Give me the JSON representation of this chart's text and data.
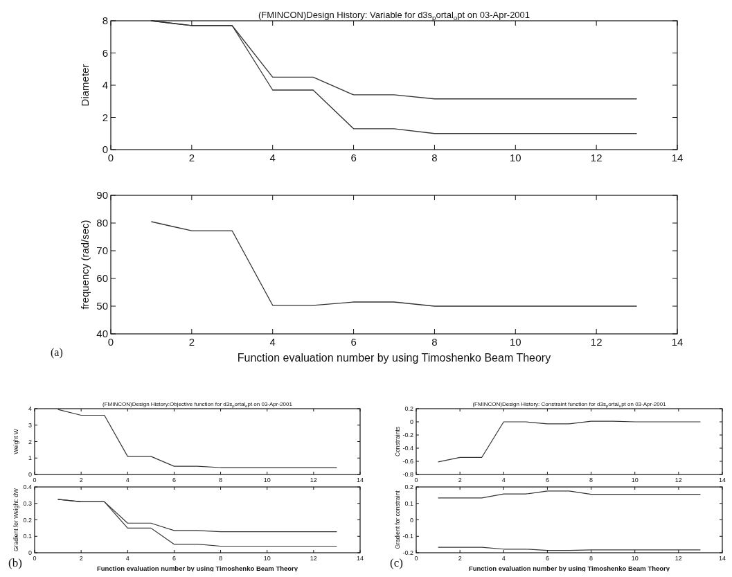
{
  "chart_data": [
    {
      "type": "line",
      "title": "(FMINCON)Design History: Variable for d3s$_{p}$ortal$_{o}$pt on 03-Apr-2001",
      "ylabel": "Diameter",
      "x": [
        1,
        2,
        3,
        4,
        5,
        6,
        7,
        8,
        9,
        10,
        11,
        12,
        13
      ],
      "xlim": [
        0,
        14
      ],
      "xticks": [
        0,
        2,
        4,
        6,
        8,
        10,
        12,
        14
      ],
      "ylim": [
        0,
        8
      ],
      "yticks": [
        0,
        2,
        4,
        6,
        8
      ],
      "series": [
        {
          "color": "#333333",
          "values": [
            8,
            7.7,
            7.7,
            4.5,
            4.5,
            3.4,
            3.4,
            3.15,
            3.15,
            3.15,
            3.15,
            3.15,
            3.15
          ]
        },
        {
          "color": "#333333",
          "values": [
            8,
            7.7,
            7.7,
            3.7,
            3.7,
            1.3,
            1.3,
            1.0,
            1.0,
            1.0,
            1.0,
            1.0,
            1.0
          ]
        }
      ]
    },
    {
      "type": "line",
      "xlabel": "Function evaluation number by using Timoshenko Beam Theory",
      "ylabel": "frequency (rad/sec)",
      "annotations": [
        "(a)"
      ],
      "x": [
        1,
        2,
        3,
        4,
        5,
        6,
        7,
        8,
        9,
        10,
        11,
        12,
        13
      ],
      "xlim": [
        0,
        14
      ],
      "xticks": [
        0,
        2,
        4,
        6,
        8,
        10,
        12,
        14
      ],
      "ylim": [
        40,
        90
      ],
      "yticks": [
        40,
        50,
        60,
        70,
        80,
        90
      ],
      "series": [
        {
          "color": "#333333",
          "values": [
            80.5,
            77.2,
            77.2,
            50.3,
            50.3,
            51.5,
            51.5,
            50,
            50,
            50,
            50,
            50,
            50
          ]
        }
      ]
    },
    {
      "type": "line",
      "title": "(FMINCON)Design History:Objective function for d3s$_{p}$ortal$_{o}$pt on 03-Apr-2001",
      "ylabel": "Weight W",
      "x": [
        1,
        2,
        3,
        4,
        5,
        6,
        7,
        8,
        9,
        10,
        11,
        12,
        13
      ],
      "xlim": [
        0,
        14
      ],
      "xticks": [
        0,
        2,
        4,
        6,
        8,
        10,
        12,
        14
      ],
      "ylim": [
        0,
        4
      ],
      "yticks": [
        0,
        1,
        2,
        3,
        4
      ],
      "series": [
        {
          "color": "#333333",
          "values": [
            3.95,
            3.6,
            3.6,
            1.1,
            1.1,
            0.5,
            0.5,
            0.42,
            0.42,
            0.42,
            0.42,
            0.42,
            0.42
          ]
        }
      ]
    },
    {
      "type": "line",
      "xlabel": "Function evaluation number by using Timoshenko Beam Theory",
      "ylabel": "Gradient for Weight: dW",
      "annotations": [
        "(b)"
      ],
      "x": [
        1,
        2,
        3,
        4,
        5,
        6,
        7,
        8,
        9,
        10,
        11,
        12,
        13
      ],
      "xlim": [
        0,
        14
      ],
      "xticks": [
        0,
        2,
        4,
        6,
        8,
        10,
        12,
        14
      ],
      "ylim": [
        0,
        0.4
      ],
      "yticks": [
        0,
        0.1,
        0.2,
        0.3,
        0.4
      ],
      "series": [
        {
          "color": "#333333",
          "values": [
            0.325,
            0.31,
            0.31,
            0.18,
            0.18,
            0.135,
            0.135,
            0.128,
            0.128,
            0.128,
            0.128,
            0.128,
            0.128
          ]
        },
        {
          "color": "#333333",
          "values": [
            0.325,
            0.31,
            0.31,
            0.15,
            0.15,
            0.052,
            0.052,
            0.04,
            0.04,
            0.04,
            0.04,
            0.04,
            0.04
          ]
        }
      ]
    },
    {
      "type": "line",
      "title": "(FMINCON)Design History: Constraint function for d3s$_{p}$ortal$_{o}$pt on 03-Apr-2001",
      "ylabel": "Constraints",
      "x": [
        1,
        2,
        3,
        4,
        5,
        6,
        7,
        8,
        9,
        10,
        11,
        12,
        13
      ],
      "xlim": [
        0,
        14
      ],
      "xticks": [
        0,
        2,
        4,
        6,
        8,
        10,
        12,
        14
      ],
      "ylim": [
        -0.8,
        0.2
      ],
      "yticks": [
        -0.8,
        -0.6,
        -0.4,
        -0.2,
        0,
        0.2
      ],
      "series": [
        {
          "color": "#333333",
          "values": [
            -0.61,
            -0.54,
            -0.54,
            0,
            0,
            -0.03,
            -0.03,
            0.01,
            0.01,
            0,
            0,
            0,
            0
          ]
        }
      ]
    },
    {
      "type": "line",
      "xlabel": "Function evaluation number by using Timoshenko Beam Theory",
      "ylabel": "Gradient for constraint",
      "annotations": [
        "(c)"
      ],
      "x": [
        1,
        2,
        3,
        4,
        5,
        6,
        7,
        8,
        9,
        10,
        11,
        12,
        13
      ],
      "xlim": [
        0,
        14
      ],
      "xticks": [
        0,
        2,
        4,
        6,
        8,
        10,
        12,
        14
      ],
      "ylim": [
        -0.2,
        0.2
      ],
      "yticks": [
        -0.2,
        -0.1,
        0,
        0.1,
        0.2
      ],
      "series": [
        {
          "color": "#333333",
          "values": [
            0.133,
            0.133,
            0.133,
            0.157,
            0.157,
            0.175,
            0.175,
            0.155,
            0.155,
            0.155,
            0.155,
            0.155,
            0.155
          ]
        },
        {
          "color": "#333333",
          "values": [
            -0.167,
            -0.167,
            -0.167,
            -0.178,
            -0.178,
            -0.186,
            -0.186,
            -0.183,
            -0.183,
            -0.183,
            -0.183,
            -0.183,
            -0.183
          ]
        }
      ]
    }
  ]
}
